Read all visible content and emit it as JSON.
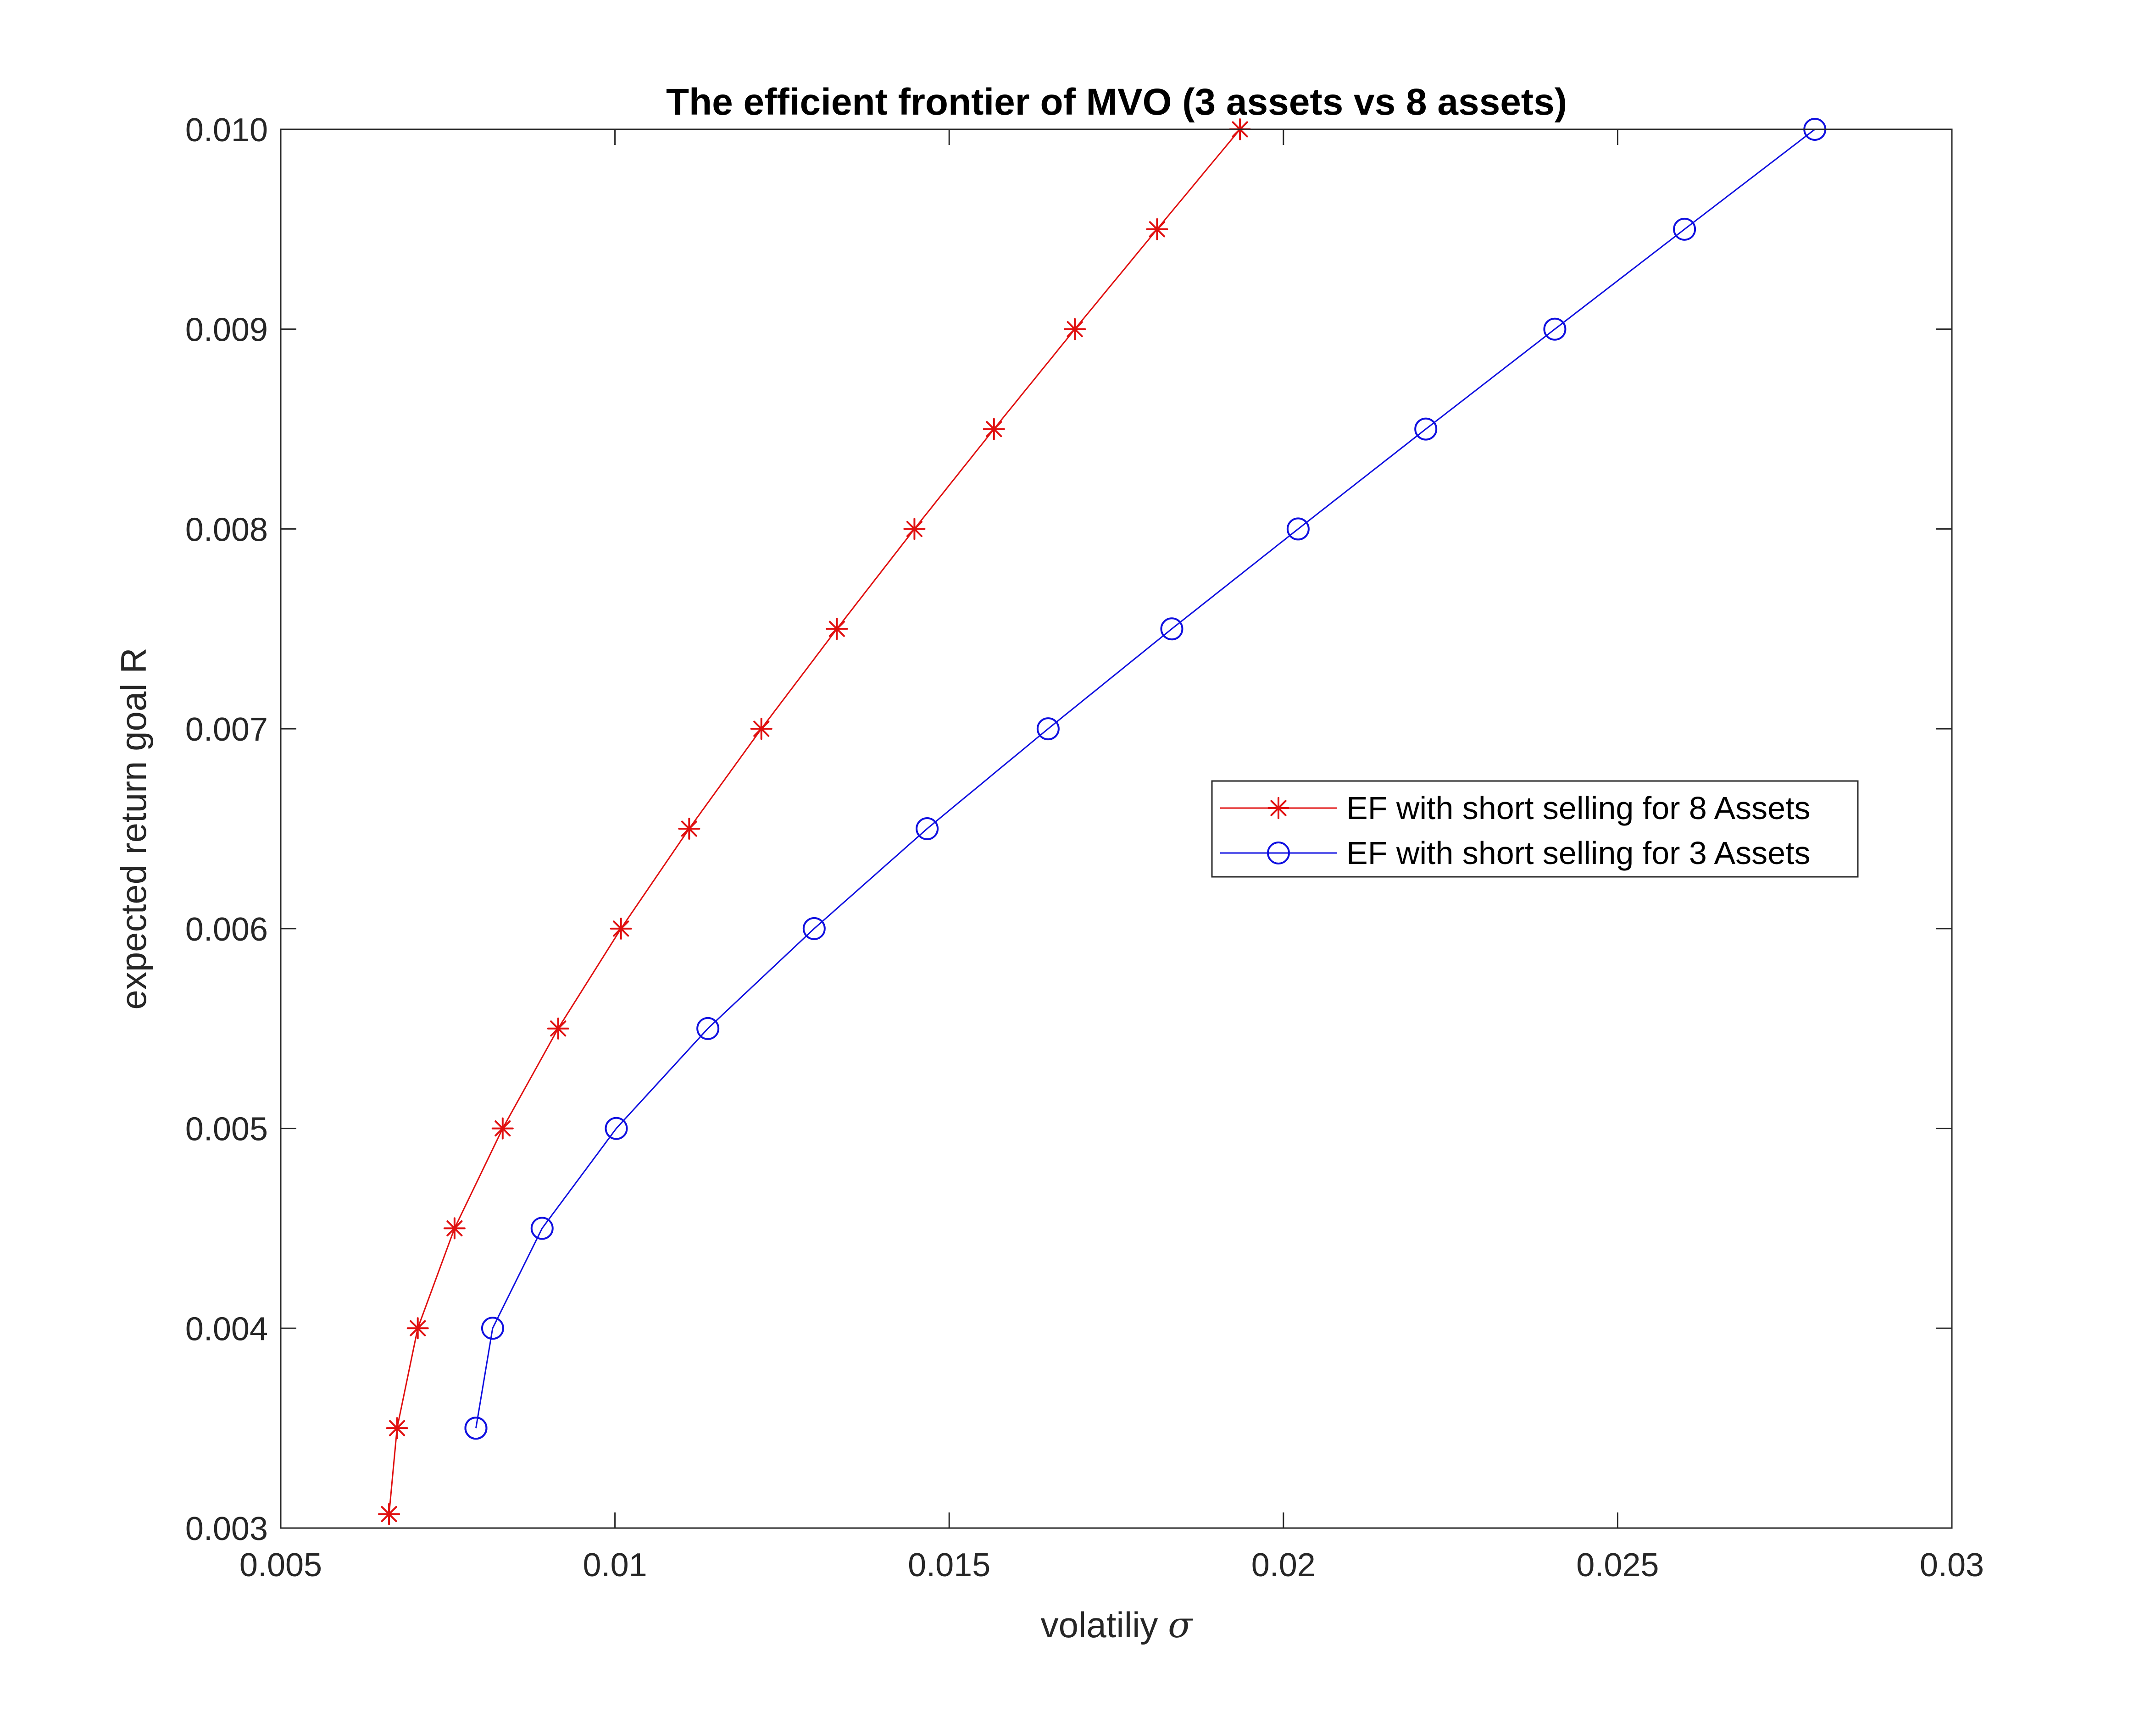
{
  "chart_data": {
    "type": "line",
    "title": "The efficient frontier of MVO (3 assets vs 8 assets)",
    "xlabel": "volatiliy",
    "xlabel_symbol": "σ",
    "ylabel": "expected return goal R",
    "xlim": [
      0.005,
      0.03
    ],
    "ylim": [
      0.003,
      0.01
    ],
    "xticks": [
      {
        "value": 0.005,
        "label": "0.005"
      },
      {
        "value": 0.01,
        "label": "0.01"
      },
      {
        "value": 0.015,
        "label": "0.015"
      },
      {
        "value": 0.02,
        "label": "0.02"
      },
      {
        "value": 0.025,
        "label": "0.025"
      },
      {
        "value": 0.03,
        "label": "0.03"
      }
    ],
    "yticks": [
      {
        "value": 0.003,
        "label": "0.003"
      },
      {
        "value": 0.004,
        "label": "0.004"
      },
      {
        "value": 0.005,
        "label": "0.005"
      },
      {
        "value": 0.006,
        "label": "0.006"
      },
      {
        "value": 0.007,
        "label": "0.007"
      },
      {
        "value": 0.008,
        "label": "0.008"
      },
      {
        "value": 0.009,
        "label": "0.009"
      },
      {
        "value": 0.01,
        "label": "0.010"
      }
    ],
    "grid": false,
    "legend_position": "center-right",
    "series": [
      {
        "name": "EF with short selling for 8 Assets",
        "color": "#e01010",
        "marker": "asterisk",
        "points": [
          [
            0.00662,
            0.00307
          ],
          [
            0.00674,
            0.0035
          ],
          [
            0.00705,
            0.004
          ],
          [
            0.0076,
            0.0045
          ],
          [
            0.00832,
            0.005
          ],
          [
            0.00915,
            0.0055
          ],
          [
            0.01009,
            0.006
          ],
          [
            0.01111,
            0.0065
          ],
          [
            0.01219,
            0.007
          ],
          [
            0.01332,
            0.0075
          ],
          [
            0.01448,
            0.008
          ],
          [
            0.01567,
            0.0085
          ],
          [
            0.01688,
            0.009
          ],
          [
            0.01811,
            0.0095
          ],
          [
            0.01935,
            0.01
          ]
        ]
      },
      {
        "name": "EF with short selling for 3 Assets",
        "color": "#1010e0",
        "marker": "circle",
        "points": [
          [
            0.00792,
            0.0035
          ],
          [
            0.00792,
            0.0035
          ],
          [
            0.00817,
            0.004
          ],
          [
            0.00891,
            0.0045
          ],
          [
            0.01002,
            0.005
          ],
          [
            0.01139,
            0.0055
          ],
          [
            0.01298,
            0.006
          ],
          [
            0.01467,
            0.0065
          ],
          [
            0.01648,
            0.007
          ],
          [
            0.01833,
            0.0075
          ],
          [
            0.02022,
            0.008
          ],
          [
            0.02213,
            0.0085
          ],
          [
            0.02406,
            0.009
          ],
          [
            0.026,
            0.0095
          ],
          [
            0.02795,
            0.01
          ]
        ]
      }
    ]
  }
}
